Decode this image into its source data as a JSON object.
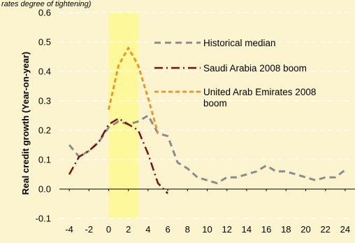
{
  "header_note": "rates degree of tightening)",
  "colors": {
    "background": "#fcf3cf",
    "highlight": "#fdf99a",
    "historical": "#8c8c8c",
    "saudi": "#7b0f0f",
    "uae": "#f5901f",
    "grid": "#ffffff"
  },
  "chart_data": {
    "type": "line",
    "title": "",
    "xlabel": "",
    "ylabel": "Real credit growth (Year-on-year)",
    "xlim": [
      -5,
      25
    ],
    "ylim": [
      -0.1,
      0.6
    ],
    "x_ticks": [
      -4,
      -2,
      0,
      2,
      4,
      6,
      8,
      10,
      12,
      14,
      16,
      18,
      20,
      22,
      24
    ],
    "y_ticks": [
      -0.1,
      0.0,
      0.1,
      0.2,
      0.3,
      0.4,
      0.5,
      0.6
    ],
    "y_tick_labels": [
      "-0.1",
      "0.0",
      "0.1",
      "0.2",
      "0.3",
      "0.4",
      "0.5",
      "0.6"
    ],
    "grid": "horizontal dashed",
    "highlight_region": [
      0,
      3
    ],
    "legend_position": "upper-right",
    "series": [
      {
        "name": "Historical median",
        "style": "dashed",
        "x": [
          -4,
          -3,
          -2,
          -1,
          0,
          1,
          2,
          3,
          4,
          5,
          6,
          7,
          8,
          9,
          10,
          11,
          12,
          13,
          14,
          15,
          16,
          17,
          18,
          19,
          20,
          21,
          22,
          23,
          24
        ],
        "values": [
          0.15,
          0.11,
          0.13,
          0.16,
          0.21,
          0.23,
          0.22,
          0.23,
          0.25,
          0.19,
          0.18,
          0.09,
          0.07,
          0.04,
          0.03,
          0.02,
          0.04,
          0.04,
          0.05,
          0.06,
          0.08,
          0.06,
          0.06,
          0.05,
          0.04,
          0.03,
          0.04,
          0.04,
          0.065
        ]
      },
      {
        "name": "Saudi Arabia  2008 boom",
        "style": "dashdot",
        "x": [
          -4,
          -3,
          -2,
          -1,
          0,
          1,
          2,
          3,
          4,
          5,
          6
        ],
        "values": [
          0.05,
          0.11,
          0.13,
          0.16,
          0.22,
          0.24,
          0.22,
          0.2,
          0.12,
          0.02,
          -0.015
        ]
      },
      {
        "name": "United Arab Emirates 2008 boom",
        "style": "shortdash",
        "x": [
          0,
          1,
          2,
          3,
          4,
          5
        ],
        "values": [
          0.27,
          0.42,
          0.48,
          0.42,
          0.31,
          0.19
        ]
      }
    ],
    "legend_lines": [
      [
        "Historical median"
      ],
      [
        "Saudi Arabia  2008 boom"
      ],
      [
        "United Arab Emirates 2008",
        "boom"
      ]
    ]
  }
}
